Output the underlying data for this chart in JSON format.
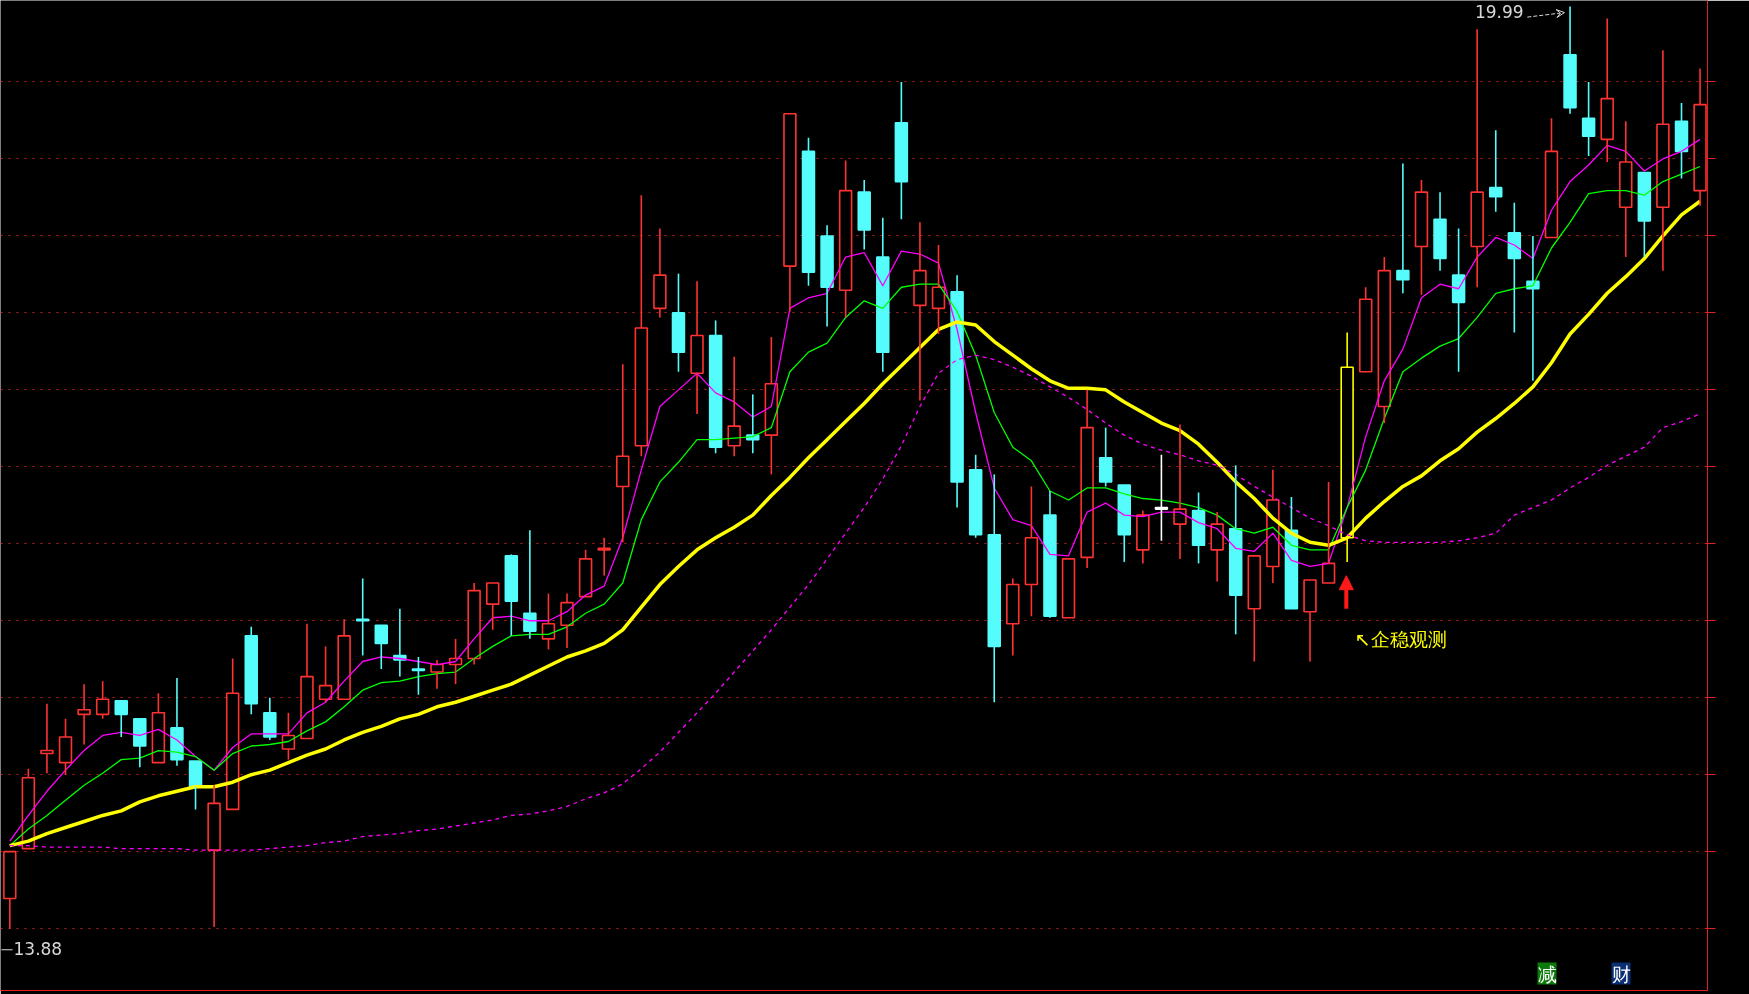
{
  "chart_data": {
    "type": "candlestick",
    "categories": [
      null,
      null,
      null,
      null,
      null,
      null,
      null,
      null,
      null,
      null,
      null,
      null,
      null,
      null,
      null,
      null,
      null,
      null,
      null,
      null,
      null,
      null,
      null,
      null,
      null,
      null,
      null,
      null,
      null,
      null,
      null,
      null,
      null,
      null,
      null,
      null,
      null,
      null,
      null,
      null,
      null,
      null,
      null,
      null,
      null,
      null,
      null,
      null,
      null,
      null,
      null,
      null,
      null,
      null,
      null,
      null,
      null,
      null,
      null,
      null,
      null,
      null,
      null,
      null,
      null,
      null,
      null,
      null,
      null,
      null,
      null,
      null,
      null,
      null,
      null,
      null,
      null,
      null,
      null,
      null,
      null,
      null,
      null,
      null,
      null,
      null,
      null,
      null,
      null,
      null,
      null,
      null
    ],
    "ohlc": [
      [
        14.08,
        14.39,
        13.88,
        14.39
      ],
      [
        14.41,
        14.94,
        14.41,
        14.88
      ],
      [
        15.04,
        15.37,
        14.91,
        15.06
      ],
      [
        14.98,
        15.27,
        14.9,
        15.15
      ],
      [
        15.3,
        15.5,
        15.1,
        15.33
      ],
      [
        15.3,
        15.52,
        15.27,
        15.4
      ],
      [
        15.39,
        15.39,
        15.15,
        15.3
      ],
      [
        15.27,
        15.27,
        14.95,
        15.09
      ],
      [
        14.98,
        15.44,
        14.98,
        15.31
      ],
      [
        15.21,
        15.54,
        14.96,
        15.0
      ],
      [
        14.99,
        14.99,
        14.67,
        14.82
      ],
      [
        14.4,
        14.83,
        13.89,
        14.71
      ],
      [
        14.67,
        15.67,
        14.67,
        15.44
      ],
      [
        15.82,
        15.88,
        15.3,
        15.37
      ],
      [
        15.31,
        15.41,
        15.13,
        15.15
      ],
      [
        15.07,
        15.31,
        15.0,
        15.16
      ],
      [
        15.14,
        15.9,
        15.14,
        15.55
      ],
      [
        15.4,
        15.75,
        15.38,
        15.49
      ],
      [
        15.4,
        15.93,
        15.4,
        15.82
      ],
      [
        15.93,
        16.2,
        15.69,
        15.92
      ],
      [
        15.89,
        15.89,
        15.6,
        15.77
      ],
      [
        15.69,
        16.0,
        15.55,
        15.66
      ],
      [
        15.6,
        15.68,
        15.43,
        15.59
      ],
      [
        15.58,
        15.66,
        15.47,
        15.63
      ],
      [
        15.63,
        15.8,
        15.5,
        15.67
      ],
      [
        15.67,
        16.17,
        15.63,
        16.12
      ],
      [
        16.03,
        16.17,
        15.86,
        16.17
      ],
      [
        16.35,
        16.36,
        15.82,
        16.05
      ],
      [
        15.97,
        16.52,
        15.8,
        15.85
      ],
      [
        15.8,
        16.1,
        15.73,
        15.9
      ],
      [
        15.89,
        16.1,
        15.74,
        16.04
      ],
      [
        16.08,
        16.39,
        16.08,
        16.33
      ],
      [
        16.39,
        16.47,
        16.22,
        16.4
      ],
      [
        16.81,
        17.62,
        16.44,
        17.01
      ],
      [
        17.08,
        18.74,
        17.01,
        17.86
      ],
      [
        17.99,
        18.52,
        17.93,
        18.21
      ],
      [
        17.96,
        18.22,
        17.57,
        17.7
      ],
      [
        17.56,
        18.17,
        17.29,
        17.81
      ],
      [
        17.81,
        17.91,
        17.03,
        17.07
      ],
      [
        17.08,
        17.67,
        17.01,
        17.21
      ],
      [
        17.15,
        17.42,
        17.03,
        17.12
      ],
      [
        17.15,
        17.8,
        16.89,
        17.49
      ],
      [
        18.27,
        19.28,
        17.97,
        19.28
      ],
      [
        19.03,
        19.12,
        18.14,
        18.23
      ],
      [
        18.47,
        18.54,
        17.87,
        18.13
      ],
      [
        18.11,
        18.97,
        17.93,
        18.77
      ],
      [
        18.76,
        18.84,
        18.38,
        18.51
      ],
      [
        18.33,
        18.59,
        17.57,
        17.7
      ],
      [
        19.22,
        19.49,
        18.58,
        18.83
      ],
      [
        18.01,
        18.56,
        17.38,
        18.24
      ],
      [
        17.99,
        18.41,
        17.82,
        18.13
      ],
      [
        18.1,
        18.21,
        16.67,
        16.84
      ],
      [
        16.92,
        17.02,
        16.47,
        16.49
      ],
      [
        16.49,
        16.89,
        15.38,
        15.75
      ],
      [
        15.9,
        16.2,
        15.69,
        16.16
      ],
      [
        16.16,
        16.81,
        15.95,
        16.47
      ],
      [
        16.62,
        16.78,
        15.94,
        15.95
      ],
      [
        15.94,
        16.33,
        15.94,
        16.33
      ],
      [
        16.34,
        17.45,
        16.27,
        17.2
      ],
      [
        17.0,
        17.2,
        16.81,
        16.84
      ],
      [
        16.82,
        16.82,
        16.31,
        16.49
      ],
      [
        16.39,
        16.65,
        16.3,
        16.62
      ],
      [
        16.67,
        17.02,
        16.45,
        16.66
      ],
      [
        16.56,
        17.22,
        16.33,
        16.66
      ],
      [
        16.65,
        16.77,
        16.3,
        16.42
      ],
      [
        16.39,
        16.64,
        16.18,
        16.56
      ],
      [
        16.53,
        16.95,
        15.83,
        16.09
      ],
      [
        16.0,
        16.35,
        15.65,
        16.35
      ],
      [
        16.28,
        16.92,
        16.17,
        16.72
      ],
      [
        16.52,
        16.74,
        16.0,
        16.0
      ],
      [
        15.98,
        16.19,
        15.65,
        16.19
      ],
      [
        16.17,
        16.84,
        16.17,
        16.3
      ],
      [
        16.47,
        17.83,
        16.31,
        17.6
      ],
      [
        17.57,
        18.13,
        17.57,
        18.05
      ],
      [
        17.34,
        18.33,
        17.23,
        18.24
      ],
      [
        18.24,
        18.95,
        18.09,
        18.18
      ],
      [
        18.4,
        18.84,
        18.08,
        18.76
      ],
      [
        18.58,
        18.76,
        18.24,
        18.32
      ],
      [
        18.21,
        18.52,
        17.57,
        18.03
      ],
      [
        18.4,
        19.84,
        18.13,
        18.76
      ],
      [
        18.79,
        19.17,
        18.63,
        18.73
      ],
      [
        18.49,
        18.69,
        17.83,
        18.32
      ],
      [
        18.17,
        18.47,
        17.51,
        18.12
      ],
      [
        18.46,
        19.25,
        18.46,
        19.03
      ],
      [
        19.67,
        19.99,
        19.28,
        19.32
      ],
      [
        19.25,
        19.49,
        19.0,
        19.13
      ],
      [
        19.11,
        19.91,
        18.96,
        19.38
      ],
      [
        18.66,
        19.23,
        18.33,
        18.96
      ],
      [
        18.89,
        18.89,
        18.33,
        18.57
      ],
      [
        18.66,
        19.7,
        18.24,
        19.21
      ],
      [
        19.23,
        19.35,
        18.85,
        19.03
      ],
      [
        18.77,
        19.58,
        18.67,
        19.34
      ]
    ],
    "colors": [
      "#ff3232",
      "#ff3232",
      "#ff3232",
      "#ff3232",
      "#ff3232",
      "#ff3232",
      "#54fcfc",
      "#54fcfc",
      "#ff3232",
      "#54fcfc",
      "#54fcfc",
      "#ff3232",
      "#ff3232",
      "#54fcfc",
      "#54fcfc",
      "#ff3232",
      "#ff3232",
      "#ff3232",
      "#ff3232",
      "#54fcfc",
      "#54fcfc",
      "#54fcfc",
      "#54fcfc",
      "#ff3232",
      "#ff3232",
      "#ff3232",
      "#ff3232",
      "#54fcfc",
      "#54fcfc",
      "#ff3232",
      "#ff3232",
      "#ff3232",
      "#ff3232",
      "#ff3232",
      "#ff3232",
      "#ff3232",
      "#54fcfc",
      "#ff3232",
      "#54fcfc",
      "#ff3232",
      "#54fcfc",
      "#ff3232",
      "#ff3232",
      "#54fcfc",
      "#54fcfc",
      "#ff3232",
      "#54fcfc",
      "#54fcfc",
      "#54fcfc",
      "#ff3232",
      "#ff3232",
      "#54fcfc",
      "#54fcfc",
      "#54fcfc",
      "#ff3232",
      "#ff3232",
      "#54fcfc",
      "#ff3232",
      "#ff3232",
      "#54fcfc",
      "#54fcfc",
      "#ff3232",
      "#ffffff",
      "#ff3232",
      "#54fcfc",
      "#ff3232",
      "#54fcfc",
      "#ff3232",
      "#ff3232",
      "#54fcfc",
      "#ff3232",
      "#ff3232",
      "#ffff00",
      "#ff3232",
      "#ff3232",
      "#54fcfc",
      "#ff3232",
      "#54fcfc",
      "#54fcfc",
      "#ff3232",
      "#54fcfc",
      "#54fcfc",
      "#54fcfc",
      "#ff3232",
      "#54fcfc",
      "#54fcfc",
      "#ff3232",
      "#ff3232",
      "#54fcfc",
      "#ff3232",
      "#54fcfc",
      "#ff3232"
    ],
    "series": [
      {
        "type": "line",
        "color": "#ff00ff",
        "values": [
          14.46,
          14.63,
          14.79,
          14.93,
          15.06,
          15.16,
          15.18,
          15.16,
          15.2,
          15.13,
          15.02,
          14.93,
          15.08,
          15.17,
          15.17,
          15.17,
          15.31,
          15.38,
          15.52,
          15.65,
          15.68,
          15.67,
          15.65,
          15.63,
          15.65,
          15.8,
          15.94,
          15.95,
          15.92,
          15.92,
          15.98,
          16.09,
          16.15,
          16.47,
          16.92,
          17.34,
          17.45,
          17.56,
          17.43,
          17.37,
          17.27,
          17.34,
          17.99,
          18.06,
          18.09,
          18.33,
          18.36,
          18.14,
          18.37,
          18.35,
          18.29,
          17.85,
          17.3,
          16.8,
          16.59,
          16.55,
          16.36,
          16.35,
          16.64,
          16.7,
          16.62,
          16.61,
          16.64,
          16.64,
          16.57,
          16.53,
          16.4,
          16.38,
          16.5,
          16.32,
          16.28,
          16.3,
          16.67,
          17.14,
          17.51,
          17.72,
          18.06,
          18.15,
          18.12,
          18.33,
          18.46,
          18.41,
          18.32,
          18.64,
          18.83,
          18.94,
          19.07,
          19.03,
          18.9,
          18.98,
          19.03,
          19.11
        ]
      },
      {
        "type": "line",
        "color": "#00ff00",
        "values": [
          14.43,
          14.54,
          14.63,
          14.73,
          14.83,
          14.91,
          15.0,
          15.01,
          15.06,
          15.05,
          15.02,
          14.93,
          15.04,
          15.09,
          15.1,
          15.12,
          15.19,
          15.25,
          15.35,
          15.46,
          15.51,
          15.52,
          15.55,
          15.57,
          15.58,
          15.67,
          15.75,
          15.82,
          15.83,
          15.83,
          15.88,
          15.97,
          16.03,
          16.17,
          16.59,
          16.84,
          16.97,
          17.12,
          17.12,
          17.13,
          17.14,
          17.2,
          17.57,
          17.7,
          17.76,
          17.93,
          18.04,
          17.99,
          18.13,
          18.15,
          18.15,
          17.97,
          17.68,
          17.3,
          17.07,
          16.98,
          16.78,
          16.72,
          16.8,
          16.8,
          16.76,
          16.73,
          16.72,
          16.7,
          16.67,
          16.62,
          16.53,
          16.5,
          16.54,
          16.42,
          16.39,
          16.39,
          16.67,
          16.92,
          17.26,
          17.57,
          17.66,
          17.74,
          17.79,
          17.93,
          18.09,
          18.12,
          18.14,
          18.39,
          18.56,
          18.75,
          18.77,
          18.77,
          18.74,
          18.83,
          18.88,
          18.93
        ]
      },
      {
        "type": "line",
        "color": "#ffff00",
        "values": [
          14.43,
          14.46,
          14.51,
          14.55,
          14.59,
          14.63,
          14.66,
          14.72,
          14.76,
          14.79,
          14.82,
          14.82,
          14.85,
          14.9,
          14.93,
          14.98,
          15.03,
          15.07,
          15.13,
          15.18,
          15.22,
          15.27,
          15.3,
          15.35,
          15.38,
          15.42,
          15.46,
          15.5,
          15.56,
          15.62,
          15.68,
          15.72,
          15.77,
          15.86,
          16.01,
          16.16,
          16.28,
          16.39,
          16.47,
          16.54,
          16.62,
          16.75,
          16.87,
          17.0,
          17.12,
          17.24,
          17.36,
          17.49,
          17.61,
          17.73,
          17.85,
          17.9,
          17.88,
          17.77,
          17.68,
          17.59,
          17.51,
          17.46,
          17.46,
          17.45,
          17.37,
          17.3,
          17.23,
          17.18,
          17.09,
          16.97,
          16.84,
          16.73,
          16.6,
          16.5,
          16.44,
          16.42,
          16.47,
          16.6,
          16.71,
          16.81,
          16.88,
          16.98,
          17.06,
          17.17,
          17.26,
          17.36,
          17.47,
          17.63,
          17.82,
          17.95,
          18.09,
          18.2,
          18.32,
          18.47,
          18.61,
          18.7
        ]
      },
      {
        "type": "line",
        "color": "#ff00ff",
        "line_style": "dashed",
        "values": [
          14.43,
          14.43,
          14.42,
          14.42,
          14.42,
          14.42,
          14.41,
          14.41,
          14.41,
          14.41,
          14.4,
          14.4,
          14.4,
          14.4,
          14.41,
          14.42,
          14.43,
          14.45,
          14.46,
          14.49,
          14.5,
          14.51,
          14.53,
          14.54,
          14.56,
          14.58,
          14.6,
          14.63,
          14.64,
          14.66,
          14.69,
          14.74,
          14.78,
          14.84,
          14.94,
          15.05,
          15.18,
          15.31,
          15.44,
          15.58,
          15.72,
          15.86,
          16.01,
          16.16,
          16.33,
          16.5,
          16.67,
          16.86,
          17.08,
          17.34,
          17.56,
          17.65,
          17.68,
          17.65,
          17.6,
          17.54,
          17.47,
          17.4,
          17.32,
          17.23,
          17.15,
          17.09,
          17.05,
          17.02,
          16.98,
          16.95,
          16.89,
          16.81,
          16.74,
          16.67,
          16.6,
          16.55,
          16.49,
          16.45,
          16.44,
          16.44,
          16.44,
          16.44,
          16.45,
          16.47,
          16.5,
          16.62,
          16.67,
          16.72,
          16.8,
          16.87,
          16.95,
          17.01,
          17.07,
          17.2,
          17.24,
          17.29
        ]
      }
    ],
    "ylim": [
      13.47,
      20.03
    ],
    "yticks": [
      {
        "value": 19.49,
        "label": null
      },
      {
        "value": 18.98,
        "label": null
      },
      {
        "value": 18.47,
        "label": null
      },
      {
        "value": 17.96,
        "label": null
      },
      {
        "value": 17.45,
        "label": null
      },
      {
        "value": 16.94,
        "label": null
      },
      {
        "value": 16.43,
        "label": null
      },
      {
        "value": 15.92,
        "label": null
      },
      {
        "value": 15.41,
        "label": null
      },
      {
        "value": 14.9,
        "label": null
      },
      {
        "value": 14.39,
        "label": null
      },
      {
        "value": 13.88,
        "label": null
      }
    ],
    "grid": "y",
    "annotations": [
      "19.99",
      "13.88",
      "↖企稳观测",
      "减",
      "财"
    ]
  }
}
